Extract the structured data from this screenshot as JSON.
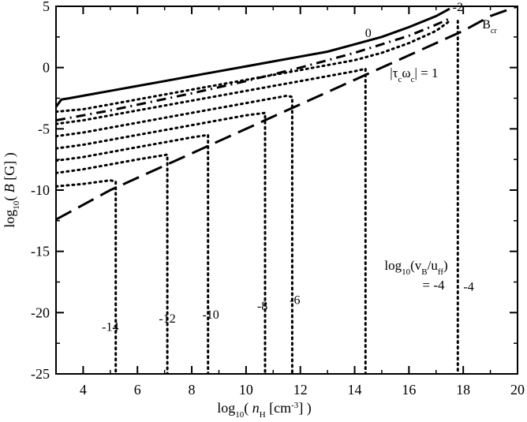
{
  "chart_data": {
    "type": "line",
    "title": "",
    "xlabel": {
      "base": "log",
      "sub": "10",
      "open": "( ",
      "var": "n",
      "varsub": "H",
      "unit": " [cm",
      "unitsup": "-3",
      "close": "] )"
    },
    "ylabel": {
      "base": "log",
      "sub": "10",
      "open": "( ",
      "var": "B",
      "unit": " [G] )"
    },
    "xlim": [
      3,
      20
    ],
    "ylim": [
      -25,
      5
    ],
    "grid": false,
    "xticks": [
      4,
      6,
      8,
      10,
      12,
      14,
      16,
      18,
      20
    ],
    "yticks": [
      -25,
      -20,
      -15,
      -10,
      -5,
      0,
      5
    ],
    "series": [
      {
        "label_text": "0",
        "style": "solid",
        "points": [
          [
            3.0,
            -3.2
          ],
          [
            3.2,
            -2.6
          ],
          [
            3.5,
            -2.5
          ],
          [
            4.0,
            -2.3
          ],
          [
            5.0,
            -1.9
          ],
          [
            6.0,
            -1.5
          ],
          [
            7.0,
            -1.1
          ],
          [
            8.0,
            -0.7
          ],
          [
            9.0,
            -0.3
          ],
          [
            10.0,
            0.1
          ],
          [
            11.0,
            0.5
          ],
          [
            12.0,
            0.9
          ],
          [
            13.0,
            1.3
          ],
          [
            14.0,
            1.9
          ],
          [
            15.0,
            2.5
          ],
          [
            16.0,
            3.3
          ],
          [
            17.0,
            4.2
          ],
          [
            17.5,
            4.8
          ]
        ]
      },
      {
        "style": "dotted",
        "points": [
          [
            3.0,
            -3.6
          ],
          [
            4.0,
            -3.4
          ],
          [
            6.0,
            -2.6
          ],
          [
            8.0,
            -1.8
          ],
          [
            10.0,
            -1.0
          ],
          [
            12.0,
            -0.2
          ],
          [
            14.0,
            0.6
          ],
          [
            15.0,
            1.2
          ],
          [
            16.0,
            2.0
          ],
          [
            17.0,
            3.0
          ],
          [
            17.5,
            3.8
          ]
        ]
      },
      {
        "style": "dotted",
        "points": [
          [
            3.0,
            -4.6
          ],
          [
            4.0,
            -4.3
          ],
          [
            6.0,
            -3.5
          ],
          [
            8.0,
            -2.7
          ],
          [
            10.0,
            -1.9
          ],
          [
            12.0,
            -1.1
          ],
          [
            14.0,
            -0.3
          ],
          [
            14.4,
            -0.1
          ],
          [
            14.4,
            -25.0
          ]
        ]
      },
      {
        "style": "dotted",
        "points": [
          [
            3.0,
            -5.6
          ],
          [
            4.0,
            -5.3
          ],
          [
            6.0,
            -4.5
          ],
          [
            8.0,
            -3.7
          ],
          [
            10.0,
            -2.9
          ],
          [
            11.5,
            -2.3
          ],
          [
            11.7,
            -2.4
          ],
          [
            11.7,
            -25.0
          ]
        ]
      },
      {
        "style": "dotted",
        "points": [
          [
            3.0,
            -6.6
          ],
          [
            4.0,
            -6.3
          ],
          [
            6.0,
            -5.5
          ],
          [
            8.0,
            -4.7
          ],
          [
            10.0,
            -3.9
          ],
          [
            10.7,
            -3.7
          ],
          [
            10.7,
            -25.0
          ]
        ]
      },
      {
        "style": "dotted",
        "points": [
          [
            3.0,
            -7.6
          ],
          [
            4.0,
            -7.3
          ],
          [
            6.0,
            -6.5
          ],
          [
            8.0,
            -5.7
          ],
          [
            8.6,
            -5.5
          ],
          [
            8.6,
            -25.0
          ]
        ]
      },
      {
        "style": "dotted",
        "points": [
          [
            3.0,
            -8.6
          ],
          [
            4.0,
            -8.3
          ],
          [
            6.0,
            -7.5
          ],
          [
            7.1,
            -7.1
          ],
          [
            7.1,
            -25.0
          ]
        ]
      },
      {
        "style": "dotted",
        "points": [
          [
            3.0,
            -9.7
          ],
          [
            4.0,
            -9.5
          ],
          [
            5.0,
            -9.2
          ],
          [
            5.2,
            -9.3
          ],
          [
            5.2,
            -25.0
          ]
        ]
      },
      {
        "label_text": "Bcr",
        "style": "dash",
        "points": [
          [
            3.0,
            -12.4
          ],
          [
            5.0,
            -10.0
          ],
          [
            8.0,
            -7.0
          ],
          [
            11.0,
            -4.0
          ],
          [
            14.0,
            -1.0
          ],
          [
            17.0,
            2.0
          ],
          [
            18.0,
            3.0
          ],
          [
            19.0,
            4.2
          ],
          [
            20.0,
            5.0
          ]
        ]
      },
      {
        "style": "dashdot",
        "points": [
          [
            3.0,
            -4.3
          ],
          [
            5.0,
            -3.5
          ],
          [
            8.0,
            -2.1
          ],
          [
            10.0,
            -1.1
          ],
          [
            12.0,
            0.0
          ],
          [
            14.0,
            1.2
          ],
          [
            16.0,
            2.6
          ],
          [
            17.0,
            3.5
          ],
          [
            17.5,
            4.0
          ]
        ]
      },
      {
        "style": "dotted",
        "points": [
          [
            17.8,
            3.8
          ],
          [
            17.8,
            -25.0
          ]
        ]
      }
    ],
    "curve_labels": [
      {
        "text": "0",
        "x": 14.5,
        "y": 2.5
      },
      {
        "text": "-2",
        "x": 17.8,
        "y": 4.6
      },
      {
        "text": "-14",
        "x": 5.0,
        "y": -21.5
      },
      {
        "text": "-12",
        "x": 7.1,
        "y": -20.8
      },
      {
        "text": "-10",
        "x": 8.7,
        "y": -20.5
      },
      {
        "text": "-8",
        "x": 10.6,
        "y": -19.8
      },
      {
        "text": "-6",
        "x": 11.8,
        "y": -19.3
      },
      {
        "text": "-4",
        "x": 18.2,
        "y": -18.2
      }
    ],
    "annotations": {
      "tau_label": {
        "bar": "|",
        "tau": "τ",
        "tau_sub": "c",
        "omega": "ω",
        "omega_sub": "c",
        "rest": "| = 1",
        "x": 15.3,
        "y": -0.8
      },
      "bcr_label": {
        "main": "B",
        "sub": "cr",
        "x": 18.7,
        "y": 3.2
      },
      "vb_label": {
        "line1_base": "log",
        "line1_sub": "10",
        "line1_open": "(v",
        "line1_vsub": "B",
        "line1_slash": "/u",
        "line1_usub": "ff",
        "line1_close": ")",
        "line2": "= -4",
        "x": 15.1,
        "y": -16.5
      }
    }
  }
}
